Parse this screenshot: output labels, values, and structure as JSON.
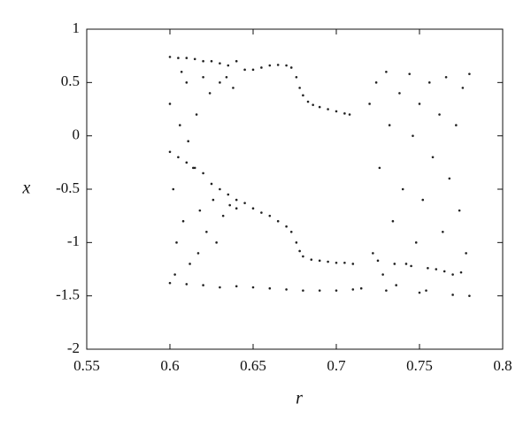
{
  "chart_data": {
    "type": "scatter",
    "x_label": "r",
    "y_label": "x",
    "color": "#222222",
    "xlim": [
      0.55,
      0.8
    ],
    "ylim": [
      -2,
      1
    ],
    "xticks": [
      0.55,
      0.6,
      0.65,
      0.7,
      0.75,
      0.8
    ],
    "yticks": [
      -2,
      -1.5,
      -1,
      -0.5,
      0,
      0.5,
      1
    ],
    "x": [
      0.65,
      0.655,
      0.66,
      0.665,
      0.67,
      0.673,
      0.676,
      0.678,
      0.68,
      0.683,
      0.686,
      0.69,
      0.695,
      0.7,
      0.705,
      0.708,
      0.64,
      0.645,
      0.65,
      0.655,
      0.66,
      0.665,
      0.67,
      0.673,
      0.676,
      0.678,
      0.68,
      0.685,
      0.69,
      0.695,
      0.7,
      0.705,
      0.71,
      0.6,
      0.61,
      0.62,
      0.63,
      0.64,
      0.65,
      0.66,
      0.67,
      0.68,
      0.69,
      0.7,
      0.71,
      0.715,
      0.6,
      0.605,
      0.61,
      0.615,
      0.62,
      0.625,
      0.63,
      0.635,
      0.6,
      0.605,
      0.61,
      0.615,
      0.62,
      0.625,
      0.63,
      0.635,
      0.64,
      0.645,
      0.6,
      0.602,
      0.604,
      0.606,
      0.608,
      0.61,
      0.612,
      0.614,
      0.616,
      0.618,
      0.62,
      0.622,
      0.624,
      0.626,
      0.628,
      0.63,
      0.632,
      0.634,
      0.636,
      0.638,
      0.64,
      0.603,
      0.607,
      0.611,
      0.617,
      0.72,
      0.722,
      0.724,
      0.726,
      0.728,
      0.73,
      0.732,
      0.734,
      0.736,
      0.738,
      0.74,
      0.742,
      0.744,
      0.746,
      0.748,
      0.75,
      0.752,
      0.754,
      0.756,
      0.758,
      0.76,
      0.762,
      0.764,
      0.766,
      0.768,
      0.77,
      0.772,
      0.774,
      0.776,
      0.778,
      0.78,
      0.78,
      0.775,
      0.765,
      0.755,
      0.745,
      0.735,
      0.725,
      0.73,
      0.75,
      0.77
    ],
    "y": [
      0.62,
      0.64,
      0.66,
      0.665,
      0.66,
      0.64,
      0.55,
      0.45,
      0.38,
      0.32,
      0.29,
      0.27,
      0.25,
      0.23,
      0.21,
      0.2,
      -0.6,
      -0.63,
      -0.68,
      -0.72,
      -0.75,
      -0.8,
      -0.85,
      -0.9,
      -1.0,
      -1.08,
      -1.13,
      -1.16,
      -1.17,
      -1.18,
      -1.19,
      -1.19,
      -1.2,
      -1.38,
      -1.39,
      -1.4,
      -1.42,
      -1.41,
      -1.42,
      -1.43,
      -1.44,
      -1.45,
      -1.45,
      -1.45,
      -1.44,
      -1.43,
      -0.15,
      -0.2,
      -0.25,
      -0.3,
      -0.35,
      -0.45,
      -0.5,
      -0.55,
      0.74,
      0.73,
      0.73,
      0.72,
      0.7,
      0.7,
      0.68,
      0.66,
      0.7,
      0.62,
      0.3,
      -0.5,
      -1.0,
      0.1,
      -0.8,
      0.5,
      -1.2,
      -0.3,
      0.2,
      -0.7,
      0.55,
      -0.9,
      0.4,
      -0.6,
      -1.0,
      0.5,
      -0.75,
      0.55,
      -0.65,
      0.45,
      -0.68,
      -1.3,
      0.6,
      -0.05,
      -1.1,
      0.3,
      -1.1,
      0.5,
      -0.3,
      -1.3,
      0.6,
      0.1,
      -0.8,
      -1.4,
      0.4,
      -0.5,
      -1.2,
      0.58,
      0.0,
      -1.0,
      0.3,
      -0.6,
      -1.45,
      0.5,
      -0.2,
      -1.25,
      0.2,
      -0.9,
      0.55,
      -0.4,
      -1.3,
      0.1,
      -0.7,
      0.45,
      -1.1,
      0.58,
      -1.5,
      -1.28,
      -1.27,
      -1.24,
      -1.22,
      -1.2,
      -1.17,
      -1.45,
      -1.47,
      -1.49
    ]
  }
}
